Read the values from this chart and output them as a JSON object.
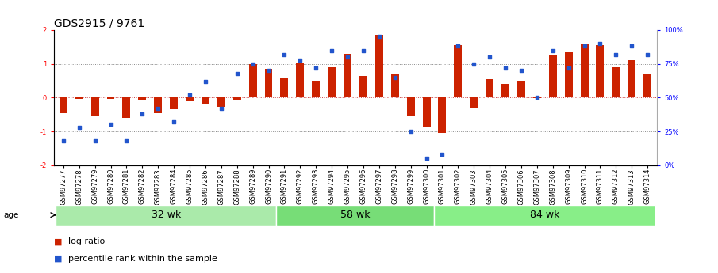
{
  "title": "GDS2915 / 9761",
  "samples": [
    "GSM97277",
    "GSM97278",
    "GSM97279",
    "GSM97280",
    "GSM97281",
    "GSM97282",
    "GSM97283",
    "GSM97284",
    "GSM97285",
    "GSM97286",
    "GSM97287",
    "GSM97288",
    "GSM97289",
    "GSM97290",
    "GSM97291",
    "GSM97292",
    "GSM97293",
    "GSM97294",
    "GSM97295",
    "GSM97296",
    "GSM97297",
    "GSM97298",
    "GSM97299",
    "GSM97300",
    "GSM97301",
    "GSM97302",
    "GSM97303",
    "GSM97304",
    "GSM97305",
    "GSM97306",
    "GSM97307",
    "GSM97308",
    "GSM97309",
    "GSM97310",
    "GSM97311",
    "GSM97312",
    "GSM97313",
    "GSM97314"
  ],
  "log_ratio": [
    -0.45,
    -0.05,
    -0.55,
    -0.05,
    -0.6,
    -0.08,
    -0.45,
    -0.35,
    -0.12,
    -0.2,
    -0.28,
    -0.08,
    1.0,
    0.85,
    0.6,
    1.05,
    0.5,
    0.9,
    1.3,
    0.65,
    1.85,
    0.7,
    -0.55,
    -0.85,
    -1.05,
    1.55,
    -0.3,
    0.55,
    0.4,
    0.5,
    -0.02,
    1.25,
    1.35,
    1.6,
    1.55,
    0.9,
    1.1,
    0.7
  ],
  "percentile_rank": [
    18,
    28,
    18,
    30,
    18,
    38,
    42,
    32,
    52,
    62,
    42,
    68,
    75,
    70,
    82,
    78,
    72,
    85,
    80,
    85,
    95,
    65,
    25,
    5,
    8,
    88,
    75,
    80,
    72,
    70,
    50,
    85,
    72,
    88,
    90,
    82,
    88,
    82
  ],
  "groups": [
    {
      "label": "32 wk",
      "start": 0,
      "end": 14,
      "color": "#aaeaaa"
    },
    {
      "label": "58 wk",
      "start": 14,
      "end": 24,
      "color": "#77dd77"
    },
    {
      "label": "84 wk",
      "start": 24,
      "end": 38,
      "color": "#88ee88"
    }
  ],
  "ylim": [
    -2,
    2
  ],
  "yticks_left": [
    -2,
    -1,
    0,
    1,
    2
  ],
  "yticks_right": [
    0,
    25,
    50,
    75,
    100
  ],
  "bar_color": "#cc2200",
  "dot_color": "#2255cc",
  "dotted_line_color": "#888888",
  "zero_line_color": "#cc4444",
  "background_color": "#ffffff",
  "title_fontsize": 10,
  "tick_fontsize": 6,
  "group_label_fontsize": 9,
  "legend_fontsize": 8,
  "age_label": "age"
}
